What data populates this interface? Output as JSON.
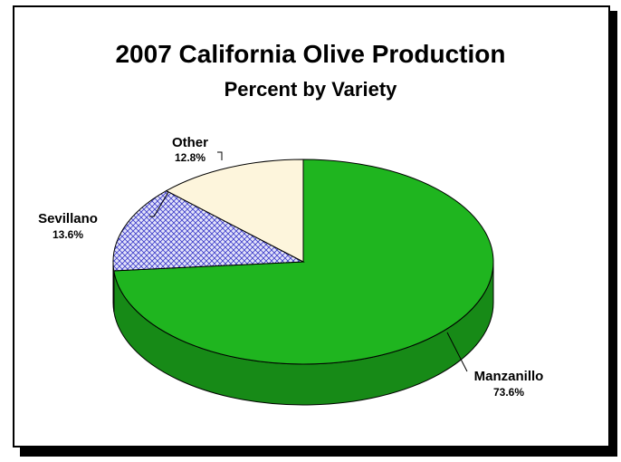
{
  "chart_data": {
    "type": "pie",
    "title": "2007 California Olive Production",
    "subtitle": "Percent by Variety",
    "slices": [
      {
        "label": "Manzanillo",
        "value_label": "73.6%",
        "value": 73.6,
        "color": "#1fb51f",
        "side_color": "#178a17"
      },
      {
        "label": "Sevillano",
        "value_label": "13.6%",
        "value": 13.6,
        "color": "#c8c8f0",
        "pattern": "crosshatch",
        "side_color": "#9898c8"
      },
      {
        "label": "Other",
        "value_label": "12.8%",
        "value": 12.8,
        "color": "#fdf5dc",
        "side_color": "#d8cfb0"
      }
    ],
    "style": "3d-pie",
    "legend": "none"
  }
}
